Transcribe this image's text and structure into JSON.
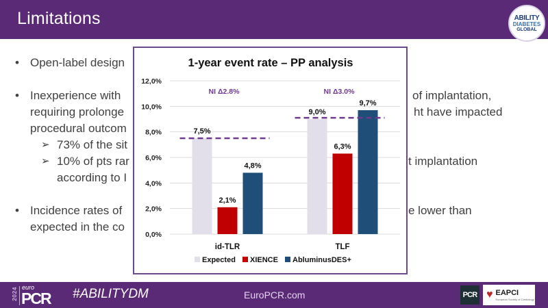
{
  "header": {
    "title": "Limitations",
    "logo": {
      "line1": "ABILITY",
      "line2": "DIABETES",
      "line3": "GLOBAL"
    }
  },
  "bullets": [
    {
      "text": "Open-label design"
    },
    {
      "lines": [
        "Inexperience with",
        "requiring prolonge",
        "procedural outcom"
      ],
      "right_lines": [
        "of implantation,",
        "ht have impacted"
      ]
    },
    {
      "lines": [
        "Incidence rates of",
        "expected in the co"
      ],
      "right_lines": [
        "e lower than"
      ]
    }
  ],
  "sub_bullets": [
    {
      "lines": [
        "73% of the sit"
      ]
    },
    {
      "lines": [
        "10% of pts rar",
        "according to I"
      ],
      "right_lines": [
        "t implantation"
      ]
    }
  ],
  "bullet_glyph": "•",
  "sub_bullet_glyph": "➢",
  "chart_data": {
    "type": "bar",
    "title": "1-year event rate – PP analysis",
    "categories": [
      "id-TLR",
      "TLF"
    ],
    "series": [
      {
        "name": "Expected",
        "color": "#e3dfea",
        "values": [
          7.5,
          9.0
        ],
        "labels": [
          "7,5%",
          "9,0%"
        ]
      },
      {
        "name": "XIENCE",
        "color": "#c00000",
        "values": [
          2.1,
          6.3
        ],
        "labels": [
          "2,1%",
          "6,3%"
        ]
      },
      {
        "name": "AbluminusDES+",
        "color": "#1f4e79",
        "values": [
          4.8,
          9.7
        ],
        "labels": [
          "4,8%",
          "9,7%"
        ]
      }
    ],
    "ylim": [
      0,
      12
    ],
    "yticks": [
      0,
      2,
      4,
      6,
      8,
      10,
      12
    ],
    "ytick_labels": [
      "0,0%",
      "2,0%",
      "4,0%",
      "6,0%",
      "8,0%",
      "10,0%",
      "12,0%"
    ],
    "xlabel": "",
    "ylabel": "",
    "grid": true,
    "legend_position": "bottom",
    "annotations": [
      {
        "category": "id-TLR",
        "text": "NI Δ2.8%",
        "threshold": 7.5
      },
      {
        "category": "TLF",
        "text": "NI Δ3.0%",
        "threshold": 9.1
      }
    ],
    "threshold_style": "dashed",
    "annotation_color": "#6d3a8f"
  },
  "footer": {
    "logo": {
      "year": "2024",
      "euro": "euro",
      "pcr": "PCR"
    },
    "hashtag": "#ABILITYDM",
    "site": "EuroPCR.com",
    "pcr_logo": "PCR",
    "eapci": {
      "heart": "♥",
      "name": "EAPCI",
      "small": "European Society of Cardiology"
    }
  }
}
